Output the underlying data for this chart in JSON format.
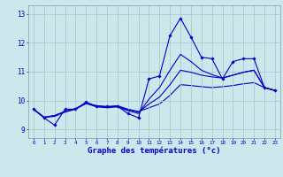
{
  "xlabel": "Graphe des températures (°c)",
  "background_color": "#cce8ec",
  "grid_color": "#aacccc",
  "line_color": "#0000cc",
  "xlim": [
    -0.5,
    23.5
  ],
  "ylim": [
    8.7,
    13.3
  ],
  "xticks": [
    0,
    1,
    2,
    3,
    4,
    5,
    6,
    7,
    8,
    9,
    10,
    11,
    12,
    13,
    14,
    15,
    16,
    17,
    18,
    19,
    20,
    21,
    22,
    23
  ],
  "yticks": [
    9,
    10,
    11,
    12,
    13
  ],
  "s1": [
    9.7,
    9.4,
    9.15,
    9.7,
    9.7,
    9.95,
    9.8,
    9.8,
    9.8,
    9.55,
    9.4,
    10.75,
    10.85,
    12.25,
    12.85,
    12.2,
    11.5,
    11.45,
    10.75,
    11.35,
    11.45,
    11.45,
    10.45,
    10.35
  ],
  "s2": [
    9.7,
    9.42,
    9.45,
    9.6,
    9.7,
    9.9,
    9.78,
    9.75,
    9.78,
    9.65,
    9.55,
    10.05,
    10.45,
    11.05,
    11.6,
    11.35,
    11.05,
    10.9,
    10.78,
    10.88,
    10.98,
    11.05,
    10.45,
    10.35
  ],
  "s3": [
    9.7,
    9.42,
    9.48,
    9.62,
    9.72,
    9.9,
    9.82,
    9.78,
    9.8,
    9.68,
    9.6,
    9.88,
    10.12,
    10.55,
    11.05,
    10.98,
    10.88,
    10.82,
    10.78,
    10.88,
    10.98,
    11.05,
    10.45,
    10.35
  ],
  "s4": [
    9.7,
    9.42,
    9.48,
    9.62,
    9.72,
    9.9,
    9.82,
    9.78,
    9.82,
    9.7,
    9.62,
    9.75,
    9.88,
    10.18,
    10.55,
    10.52,
    10.48,
    10.45,
    10.48,
    10.52,
    10.58,
    10.62,
    10.45,
    10.35
  ]
}
